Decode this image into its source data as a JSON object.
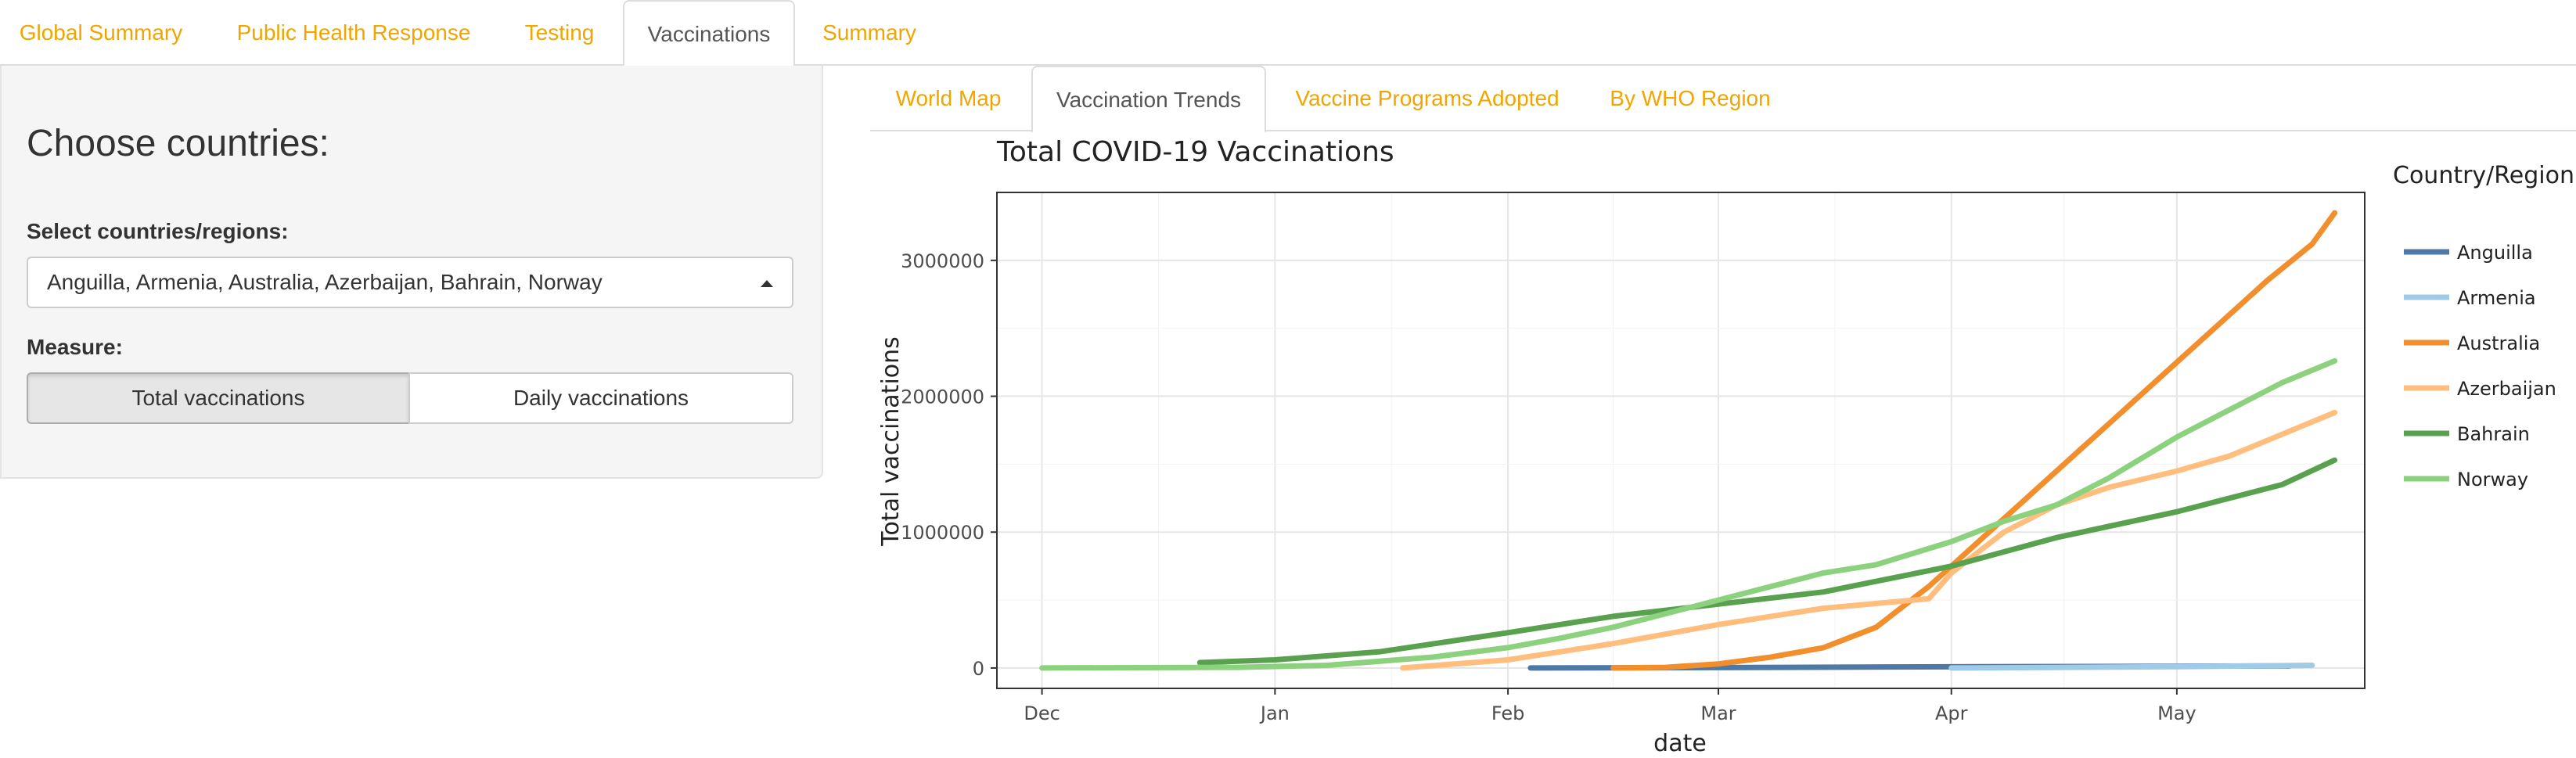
{
  "main_tabs": [
    "Global Summary",
    "Public Health Response",
    "Testing",
    "Vaccinations",
    "Summary"
  ],
  "main_tab_active": 3,
  "sidebar": {
    "heading": "Choose countries:",
    "select_label": "Select countries/regions:",
    "select_value": "Anguilla, Armenia, Australia, Azerbaijan, Bahrain, Norway",
    "measure_label": "Measure:",
    "measure_options": [
      "Total vaccinations",
      "Daily vaccinations"
    ],
    "measure_selected": "Total vaccinations"
  },
  "sub_tabs": [
    "World Map",
    "Vaccination Trends",
    "Vaccine Programs Adopted",
    "By WHO Region"
  ],
  "sub_tab_active": 1,
  "colors": {
    "tab_link": "#f0a500"
  },
  "chart_data": {
    "type": "line",
    "title": "Total COVID-19 Vaccinations",
    "xlabel": "date",
    "ylabel": "Total vaccinations",
    "legend_title": "Country/Region",
    "legend_position": "right",
    "grid": true,
    "xlim": [
      "2020-11-25",
      "2021-05-26"
    ],
    "ylim": [
      -150000,
      3500000
    ],
    "x_ticks": [
      {
        "date": "2020-12-01",
        "label": "Dec"
      },
      {
        "date": "2021-01-01",
        "label": "Jan"
      },
      {
        "date": "2021-02-01",
        "label": "Feb"
      },
      {
        "date": "2021-03-01",
        "label": "Mar"
      },
      {
        "date": "2021-04-01",
        "label": "Apr"
      },
      {
        "date": "2021-05-01",
        "label": "May"
      }
    ],
    "y_ticks": [
      0,
      1000000,
      2000000,
      3000000
    ],
    "series": [
      {
        "name": "Anguilla",
        "color": "#4e79a7",
        "points": [
          [
            "2021-02-04",
            0
          ],
          [
            "2021-03-01",
            3000
          ],
          [
            "2021-04-01",
            9000
          ],
          [
            "2021-05-01",
            13000
          ],
          [
            "2021-05-16",
            15000
          ]
        ]
      },
      {
        "name": "Armenia",
        "color": "#a0cbe8",
        "points": [
          [
            "2021-04-01",
            0
          ],
          [
            "2021-04-15",
            4000
          ],
          [
            "2021-05-01",
            10000
          ],
          [
            "2021-05-19",
            20000
          ]
        ]
      },
      {
        "name": "Australia",
        "color": "#f28e2b",
        "points": [
          [
            "2021-02-15",
            0
          ],
          [
            "2021-02-22",
            5000
          ],
          [
            "2021-03-01",
            30000
          ],
          [
            "2021-03-08",
            80000
          ],
          [
            "2021-03-15",
            150000
          ],
          [
            "2021-03-22",
            300000
          ],
          [
            "2021-03-29",
            600000
          ],
          [
            "2021-04-01",
            750000
          ],
          [
            "2021-04-08",
            1100000
          ],
          [
            "2021-04-15",
            1450000
          ],
          [
            "2021-04-22",
            1800000
          ],
          [
            "2021-04-29",
            2150000
          ],
          [
            "2021-05-06",
            2500000
          ],
          [
            "2021-05-13",
            2850000
          ],
          [
            "2021-05-19",
            3120000
          ],
          [
            "2021-05-22",
            3350000
          ]
        ]
      },
      {
        "name": "Azerbaijan",
        "color": "#ffbe7d",
        "points": [
          [
            "2021-01-18",
            0
          ],
          [
            "2021-02-01",
            60000
          ],
          [
            "2021-02-15",
            180000
          ],
          [
            "2021-03-01",
            320000
          ],
          [
            "2021-03-15",
            440000
          ],
          [
            "2021-03-29",
            510000
          ],
          [
            "2021-04-01",
            700000
          ],
          [
            "2021-04-08",
            1000000
          ],
          [
            "2021-04-15",
            1200000
          ],
          [
            "2021-04-22",
            1330000
          ],
          [
            "2021-05-01",
            1450000
          ],
          [
            "2021-05-08",
            1560000
          ],
          [
            "2021-05-15",
            1720000
          ],
          [
            "2021-05-22",
            1880000
          ]
        ]
      },
      {
        "name": "Bahrain",
        "color": "#59a14f",
        "points": [
          [
            "2020-12-22",
            40000
          ],
          [
            "2021-01-01",
            60000
          ],
          [
            "2021-01-15",
            120000
          ],
          [
            "2021-02-01",
            260000
          ],
          [
            "2021-02-15",
            380000
          ],
          [
            "2021-03-01",
            470000
          ],
          [
            "2021-03-15",
            560000
          ],
          [
            "2021-04-01",
            750000
          ],
          [
            "2021-04-15",
            960000
          ],
          [
            "2021-05-01",
            1150000
          ],
          [
            "2021-05-15",
            1350000
          ],
          [
            "2021-05-22",
            1530000
          ]
        ]
      },
      {
        "name": "Norway",
        "color": "#8cd17d",
        "points": [
          [
            "2020-12-01",
            0
          ],
          [
            "2020-12-27",
            5000
          ],
          [
            "2021-01-08",
            20000
          ],
          [
            "2021-01-22",
            80000
          ],
          [
            "2021-02-01",
            150000
          ],
          [
            "2021-02-08",
            220000
          ],
          [
            "2021-02-15",
            300000
          ],
          [
            "2021-02-22",
            400000
          ],
          [
            "2021-03-01",
            500000
          ],
          [
            "2021-03-08",
            600000
          ],
          [
            "2021-03-15",
            700000
          ],
          [
            "2021-03-22",
            760000
          ],
          [
            "2021-04-01",
            930000
          ],
          [
            "2021-04-08",
            1080000
          ],
          [
            "2021-04-15",
            1200000
          ],
          [
            "2021-04-22",
            1400000
          ],
          [
            "2021-05-01",
            1700000
          ],
          [
            "2021-05-08",
            1900000
          ],
          [
            "2021-05-15",
            2100000
          ],
          [
            "2021-05-22",
            2260000
          ]
        ]
      }
    ]
  }
}
